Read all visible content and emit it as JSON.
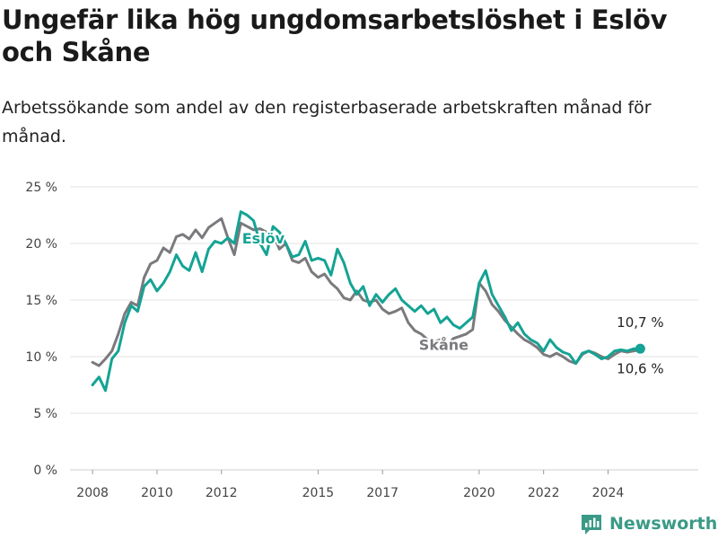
{
  "title": "Ungefär lika hög ungdomsarbetslöshet i Eslöv och Skåne",
  "subtitle": "Arbetssökande som andel av den registerbaserade arbetskraften månad för månad.",
  "brand": {
    "name": "Newsworthy",
    "color": "#3a9a87"
  },
  "chart_data": {
    "type": "line",
    "title": "",
    "xlabel": "",
    "ylabel": "",
    "xlim": [
      2007.3,
      2026.8
    ],
    "ylim": [
      0,
      25
    ],
    "grid": true,
    "y_ticks": [
      {
        "value": 0,
        "label": "0 %"
      },
      {
        "value": 5,
        "label": "5 %"
      },
      {
        "value": 10,
        "label": "10 %"
      },
      {
        "value": 15,
        "label": "15 %"
      },
      {
        "value": 20,
        "label": "20 %"
      },
      {
        "value": 25,
        "label": "25 %"
      }
    ],
    "x_ticks": [
      {
        "value": 2008,
        "label": "2008"
      },
      {
        "value": 2010,
        "label": "2010"
      },
      {
        "value": 2012,
        "label": "2012"
      },
      {
        "value": 2015,
        "label": "2015"
      },
      {
        "value": 2017,
        "label": "2017"
      },
      {
        "value": 2020,
        "label": "2020"
      },
      {
        "value": 2022,
        "label": "2022"
      },
      {
        "value": 2024,
        "label": "2024"
      }
    ],
    "series": [
      {
        "name": "Skåne",
        "color": "#7a7a7e",
        "label_at": [
          2018.9,
          10.6
        ],
        "end_label": "10,6 %",
        "x": [
          2008.0,
          2008.2,
          2008.4,
          2008.6,
          2008.8,
          2009.0,
          2009.2,
          2009.4,
          2009.6,
          2009.8,
          2010.0,
          2010.2,
          2010.4,
          2010.6,
          2010.8,
          2011.0,
          2011.2,
          2011.4,
          2011.6,
          2011.8,
          2012.0,
          2012.2,
          2012.4,
          2012.6,
          2012.8,
          2013.0,
          2013.2,
          2013.4,
          2013.6,
          2013.8,
          2014.0,
          2014.2,
          2014.4,
          2014.6,
          2014.8,
          2015.0,
          2015.2,
          2015.4,
          2015.6,
          2015.8,
          2016.0,
          2016.2,
          2016.4,
          2016.6,
          2016.8,
          2017.0,
          2017.2,
          2017.4,
          2017.6,
          2017.8,
          2018.0,
          2018.2,
          2018.4,
          2018.6,
          2018.8,
          2019.0,
          2019.2,
          2019.4,
          2019.6,
          2019.8,
          2020.0,
          2020.2,
          2020.4,
          2020.6,
          2020.8,
          2021.0,
          2021.2,
          2021.4,
          2021.6,
          2021.8,
          2022.0,
          2022.2,
          2022.4,
          2022.6,
          2022.8,
          2023.0,
          2023.2,
          2023.4,
          2023.6,
          2023.8,
          2024.0,
          2024.2,
          2024.4,
          2024.6,
          2024.8,
          2025.0
        ],
        "values": [
          9.5,
          9.2,
          9.8,
          10.5,
          12.0,
          13.8,
          14.8,
          14.5,
          17.0,
          18.2,
          18.5,
          19.6,
          19.2,
          20.6,
          20.8,
          20.4,
          21.2,
          20.5,
          21.4,
          21.8,
          22.2,
          20.5,
          19.0,
          21.8,
          21.5,
          21.2,
          21.3,
          21.0,
          20.8,
          19.5,
          20.0,
          18.5,
          18.3,
          18.7,
          17.5,
          17.0,
          17.3,
          16.5,
          16.0,
          15.2,
          15.0,
          15.8,
          15.0,
          14.8,
          15.0,
          14.2,
          13.8,
          14.0,
          14.3,
          13.0,
          12.3,
          12.0,
          11.5,
          11.3,
          11.5,
          11.0,
          11.6,
          11.8,
          12.0,
          12.4,
          16.5,
          15.8,
          14.6,
          14.0,
          13.2,
          12.6,
          12.0,
          11.5,
          11.2,
          10.8,
          10.2,
          10.0,
          10.3,
          10.0,
          9.6,
          9.4,
          10.2,
          10.5,
          10.3,
          10.0,
          9.8,
          10.2,
          10.5,
          10.4,
          10.5,
          10.6
        ]
      },
      {
        "name": "Eslöv",
        "color": "#14a394",
        "label_at": [
          2013.3,
          20.0
        ],
        "end_label": "10,7 %",
        "x": [
          2008.0,
          2008.2,
          2008.4,
          2008.6,
          2008.8,
          2009.0,
          2009.2,
          2009.4,
          2009.6,
          2009.8,
          2010.0,
          2010.2,
          2010.4,
          2010.6,
          2010.8,
          2011.0,
          2011.2,
          2011.4,
          2011.6,
          2011.8,
          2012.0,
          2012.2,
          2012.4,
          2012.6,
          2012.8,
          2013.0,
          2013.2,
          2013.4,
          2013.6,
          2013.8,
          2014.0,
          2014.2,
          2014.4,
          2014.6,
          2014.8,
          2015.0,
          2015.2,
          2015.4,
          2015.6,
          2015.8,
          2016.0,
          2016.2,
          2016.4,
          2016.6,
          2016.8,
          2017.0,
          2017.2,
          2017.4,
          2017.6,
          2017.8,
          2018.0,
          2018.2,
          2018.4,
          2018.6,
          2018.8,
          2019.0,
          2019.2,
          2019.4,
          2019.6,
          2019.8,
          2020.0,
          2020.2,
          2020.4,
          2020.6,
          2020.8,
          2021.0,
          2021.2,
          2021.4,
          2021.6,
          2021.8,
          2022.0,
          2022.2,
          2022.4,
          2022.6,
          2022.8,
          2023.0,
          2023.2,
          2023.4,
          2023.6,
          2023.8,
          2024.0,
          2024.2,
          2024.4,
          2024.6,
          2024.8,
          2025.0
        ],
        "values": [
          7.5,
          8.2,
          7.0,
          9.8,
          10.5,
          13.0,
          14.5,
          14.0,
          16.2,
          16.8,
          15.8,
          16.5,
          17.5,
          19.0,
          18.0,
          17.6,
          19.2,
          17.5,
          19.5,
          20.2,
          20.0,
          20.5,
          20.0,
          22.8,
          22.5,
          22.0,
          20.0,
          19.0,
          21.5,
          21.0,
          20.0,
          18.8,
          19.0,
          20.2,
          18.5,
          18.7,
          18.5,
          17.2,
          19.5,
          18.3,
          16.5,
          15.5,
          16.2,
          14.5,
          15.5,
          14.8,
          15.5,
          16.0,
          15.0,
          14.5,
          14.0,
          14.5,
          13.8,
          14.2,
          13.0,
          13.5,
          12.8,
          12.5,
          13.0,
          13.5,
          16.5,
          17.6,
          15.5,
          14.5,
          13.5,
          12.3,
          13.0,
          12.0,
          11.5,
          11.2,
          10.5,
          11.5,
          10.8,
          10.4,
          10.2,
          9.4,
          10.3,
          10.5,
          10.2,
          9.8,
          10.0,
          10.5,
          10.6,
          10.5,
          10.7,
          10.7
        ]
      }
    ]
  }
}
